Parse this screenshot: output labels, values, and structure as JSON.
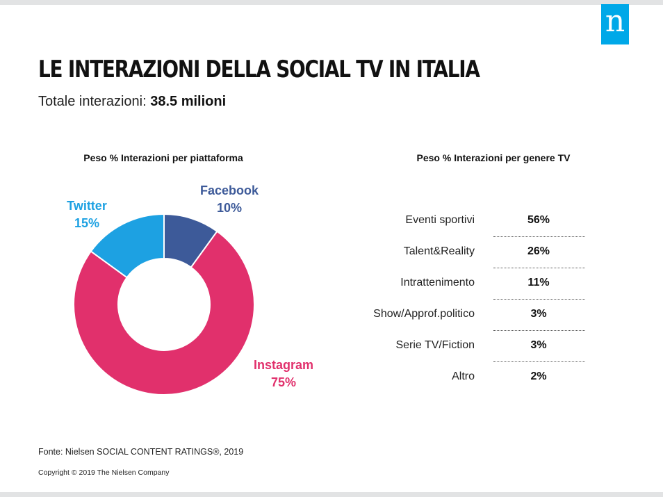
{
  "brand": {
    "logo_letter": "n",
    "color": "#00a8e8"
  },
  "title": "LE INTERAZIONI DELLA SOCIAL TV IN ITALIA",
  "subtitle": {
    "label": "Totale interazioni:",
    "value": "38.5 milioni"
  },
  "chart_data": [
    {
      "type": "pie",
      "title": "Peso % Interazioni per piattaforma",
      "donut": true,
      "slices": [
        {
          "name": "Facebook",
          "value": 10,
          "label": "10%",
          "color": "#3d5a99"
        },
        {
          "name": "Instagram",
          "value": 75,
          "label": "75%",
          "color": "#e1306c"
        },
        {
          "name": "Twitter",
          "value": 15,
          "label": "15%",
          "color": "#1da1e2"
        }
      ]
    },
    {
      "type": "table",
      "title": "Peso % Interazioni per genere TV",
      "rows": [
        {
          "genre": "Eventi sportivi",
          "value": 56,
          "label": "56%"
        },
        {
          "genre": "Talent&Reality",
          "value": 26,
          "label": "26%"
        },
        {
          "genre": "Intrattenimento",
          "value": 11,
          "label": "11%"
        },
        {
          "genre": "Show/Approf.politico",
          "value": 3,
          "label": "3%"
        },
        {
          "genre": "Serie TV/Fiction",
          "value": 3,
          "label": "3%"
        },
        {
          "genre": "Altro",
          "value": 2,
          "label": "2%"
        }
      ]
    }
  ],
  "footer": {
    "source": "Fonte: Nielsen  SOCIAL  CONTENT  RATINGS®,  2019",
    "copyright": "Copyright © 2019 The Nielsen Company"
  }
}
